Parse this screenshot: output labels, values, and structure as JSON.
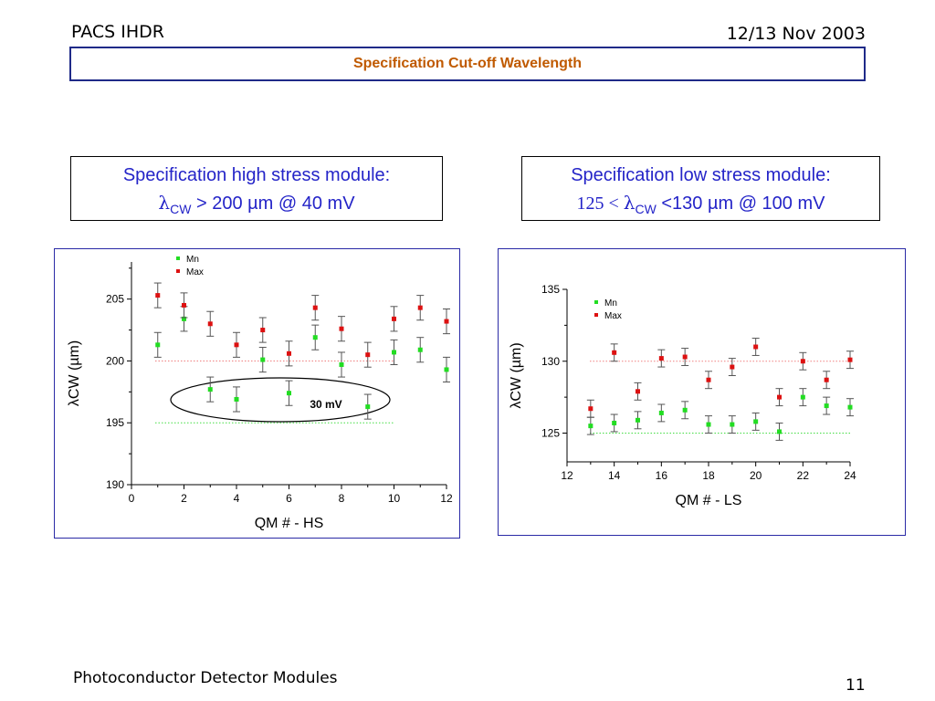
{
  "header": {
    "left": "PACS IHDR",
    "right": "12/13 Nov 2003"
  },
  "title": "Specification Cut-off Wavelength",
  "specs": {
    "left": {
      "line1": "Specification high stress module:",
      "symbol": "λ",
      "subscript": "CW",
      "rest": " > 200 µm @ 40 mV"
    },
    "right": {
      "line1": "Specification low stress module:",
      "prefix": "125 < ",
      "symbol": "λ",
      "subscript": "CW",
      "rest": " <130 µm @ 100 mV"
    }
  },
  "chart_data": [
    {
      "type": "scatter",
      "xlabel": "QM # - HS",
      "ylabel": "λCW (µm)",
      "xlim": [
        0,
        12
      ],
      "ylim": [
        190,
        208
      ],
      "xticks": [
        0,
        2,
        4,
        6,
        8,
        10,
        12
      ],
      "yticks": [
        190,
        195,
        200,
        205
      ],
      "legend_position": "top-left",
      "annotation": "30 mV",
      "reference_lines": [
        {
          "y": 200,
          "color": "#f08080"
        },
        {
          "y": 195,
          "color": "#44dd44"
        }
      ],
      "series": [
        {
          "name": "Mn",
          "color": "#22dd22",
          "x": [
            1,
            2,
            3,
            4,
            5,
            6,
            7,
            8,
            9,
            10,
            11,
            12
          ],
          "y": [
            201.3,
            203.4,
            197.7,
            196.9,
            200.1,
            197.4,
            201.9,
            199.7,
            196.3,
            200.7,
            200.9,
            199.3
          ],
          "err": [
            1.0,
            1.0,
            1.0,
            1.0,
            1.0,
            1.0,
            1.0,
            1.0,
            1.0,
            1.0,
            1.0,
            1.0
          ]
        },
        {
          "name": "Max",
          "color": "#dd1111",
          "x": [
            1,
            2,
            3,
            4,
            5,
            6,
            7,
            8,
            9,
            10,
            11,
            12
          ],
          "y": [
            205.3,
            204.5,
            203.0,
            201.3,
            202.5,
            200.6,
            204.3,
            202.6,
            200.5,
            203.4,
            204.3,
            203.2
          ],
          "err": [
            1.0,
            1.0,
            1.0,
            1.0,
            1.0,
            1.0,
            1.0,
            1.0,
            1.0,
            1.0,
            1.0,
            1.0
          ]
        }
      ]
    },
    {
      "type": "scatter",
      "xlabel": "QM # - LS",
      "ylabel": "λCW (µm)",
      "xlim": [
        12,
        24
      ],
      "ylim": [
        123,
        135
      ],
      "xticks": [
        12,
        14,
        16,
        18,
        20,
        22,
        24
      ],
      "yticks": [
        125,
        130,
        135
      ],
      "legend_position": "top-left",
      "reference_lines": [
        {
          "y": 130,
          "color": "#f08080"
        },
        {
          "y": 125,
          "color": "#44dd44"
        }
      ],
      "series": [
        {
          "name": "Mn",
          "color": "#22dd22",
          "x": [
            13,
            14,
            15,
            16,
            17,
            18,
            19,
            20,
            21,
            22,
            23,
            24
          ],
          "y": [
            125.5,
            125.7,
            125.9,
            126.4,
            126.6,
            125.6,
            125.6,
            125.8,
            125.1,
            127.5,
            126.9,
            126.8
          ],
          "err": [
            0.6,
            0.6,
            0.6,
            0.6,
            0.6,
            0.6,
            0.6,
            0.6,
            0.6,
            0.6,
            0.6,
            0.6
          ]
        },
        {
          "name": "Max",
          "color": "#dd1111",
          "x": [
            13,
            14,
            15,
            16,
            17,
            18,
            19,
            20,
            21,
            22,
            23,
            24
          ],
          "y": [
            126.7,
            130.6,
            127.9,
            130.2,
            130.3,
            128.7,
            129.6,
            131.0,
            127.5,
            130.0,
            128.7,
            130.1
          ],
          "err": [
            0.6,
            0.6,
            0.6,
            0.6,
            0.6,
            0.6,
            0.6,
            0.6,
            0.6,
            0.6,
            0.6,
            0.6
          ]
        }
      ]
    }
  ],
  "footer": {
    "left": "Photoconductor Detector Modules",
    "page": "11"
  }
}
